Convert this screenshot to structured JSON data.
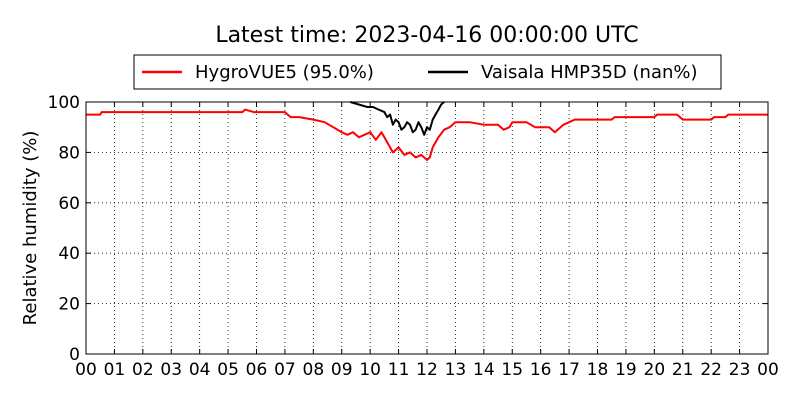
{
  "chart_data": {
    "type": "line",
    "title": "Latest time: 2023-04-16 00:00:00 UTC",
    "xlabel": "",
    "ylabel": "Relative humidity (%)",
    "xlim": [
      0,
      24
    ],
    "ylim": [
      0,
      100
    ],
    "x_tick_labels": [
      "00",
      "01",
      "02",
      "03",
      "04",
      "05",
      "06",
      "07",
      "08",
      "09",
      "10",
      "11",
      "12",
      "13",
      "14",
      "15",
      "16",
      "17",
      "18",
      "19",
      "20",
      "21",
      "22",
      "23",
      "00"
    ],
    "y_ticks": [
      0,
      20,
      40,
      60,
      80,
      100
    ],
    "grid": true,
    "legend_position": "top",
    "series": [
      {
        "name": "HygroVUE5 (95.0%)",
        "color": "#ff0000",
        "points": [
          [
            0.0,
            95
          ],
          [
            0.5,
            95
          ],
          [
            0.55,
            96
          ],
          [
            2.0,
            96
          ],
          [
            4.0,
            96
          ],
          [
            5.5,
            96
          ],
          [
            5.6,
            97
          ],
          [
            5.9,
            96
          ],
          [
            6.0,
            96
          ],
          [
            7.0,
            96
          ],
          [
            7.2,
            94
          ],
          [
            7.5,
            94
          ],
          [
            8.0,
            93
          ],
          [
            8.4,
            92
          ],
          [
            8.7,
            90
          ],
          [
            9.0,
            88
          ],
          [
            9.2,
            87
          ],
          [
            9.4,
            88
          ],
          [
            9.6,
            86
          ],
          [
            9.8,
            87
          ],
          [
            10.0,
            88
          ],
          [
            10.2,
            85
          ],
          [
            10.4,
            88
          ],
          [
            10.6,
            84
          ],
          [
            10.8,
            80
          ],
          [
            11.0,
            82
          ],
          [
            11.2,
            79
          ],
          [
            11.4,
            80
          ],
          [
            11.6,
            78
          ],
          [
            11.8,
            79
          ],
          [
            12.0,
            77
          ],
          [
            12.1,
            78
          ],
          [
            12.2,
            82
          ],
          [
            12.4,
            86
          ],
          [
            12.6,
            89
          ],
          [
            12.8,
            90
          ],
          [
            13.0,
            92
          ],
          [
            13.5,
            92
          ],
          [
            14.0,
            91
          ],
          [
            14.5,
            91
          ],
          [
            14.7,
            89
          ],
          [
            14.9,
            90
          ],
          [
            15.0,
            92
          ],
          [
            15.5,
            92
          ],
          [
            15.8,
            90
          ],
          [
            16.0,
            90
          ],
          [
            16.3,
            90
          ],
          [
            16.5,
            88
          ],
          [
            16.8,
            91
          ],
          [
            17.0,
            92
          ],
          [
            17.2,
            93
          ],
          [
            18.0,
            93
          ],
          [
            18.5,
            93
          ],
          [
            18.6,
            94
          ],
          [
            19.5,
            94
          ],
          [
            20.0,
            94
          ],
          [
            20.1,
            95
          ],
          [
            20.8,
            95
          ],
          [
            21.0,
            93
          ],
          [
            21.5,
            93
          ],
          [
            22.0,
            93
          ],
          [
            22.1,
            94
          ],
          [
            22.5,
            94
          ],
          [
            22.6,
            95
          ],
          [
            23.5,
            95
          ],
          [
            24.0,
            95
          ]
        ]
      },
      {
        "name": "Vaisala HMP35D (nan%)",
        "color": "#000000",
        "points": [
          [
            9.3,
            100
          ],
          [
            9.6,
            99
          ],
          [
            9.9,
            98
          ],
          [
            10.1,
            98
          ],
          [
            10.3,
            97
          ],
          [
            10.5,
            96
          ],
          [
            10.6,
            94
          ],
          [
            10.7,
            95
          ],
          [
            10.8,
            91
          ],
          [
            10.9,
            93
          ],
          [
            11.0,
            92
          ],
          [
            11.1,
            89
          ],
          [
            11.2,
            90
          ],
          [
            11.3,
            92
          ],
          [
            11.4,
            91
          ],
          [
            11.5,
            88
          ],
          [
            11.6,
            89
          ],
          [
            11.7,
            92
          ],
          [
            11.8,
            90
          ],
          [
            11.9,
            87
          ],
          [
            12.0,
            90
          ],
          [
            12.1,
            89
          ],
          [
            12.2,
            93
          ],
          [
            12.3,
            95
          ],
          [
            12.4,
            97
          ],
          [
            12.5,
            99
          ],
          [
            12.6,
            100
          ]
        ]
      }
    ]
  }
}
